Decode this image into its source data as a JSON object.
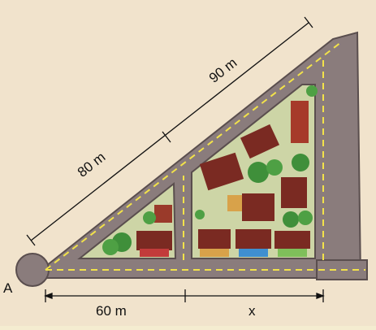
{
  "labels": {
    "point_a": "A",
    "segment_80": "80 m",
    "segment_90": "90 m",
    "segment_60": "60 m",
    "segment_x": "x"
  },
  "colors": {
    "paper": "#f4ecd0",
    "road": "#8a7c7c",
    "road_edge": "#5a4e4e",
    "road_dash": "#f2e24a",
    "grass": "#cdd5a6",
    "tree": "#3f8f3a",
    "house_roof": "#7a2a22",
    "house_wall": "#d8a24a",
    "measure_line": "#111111"
  }
}
